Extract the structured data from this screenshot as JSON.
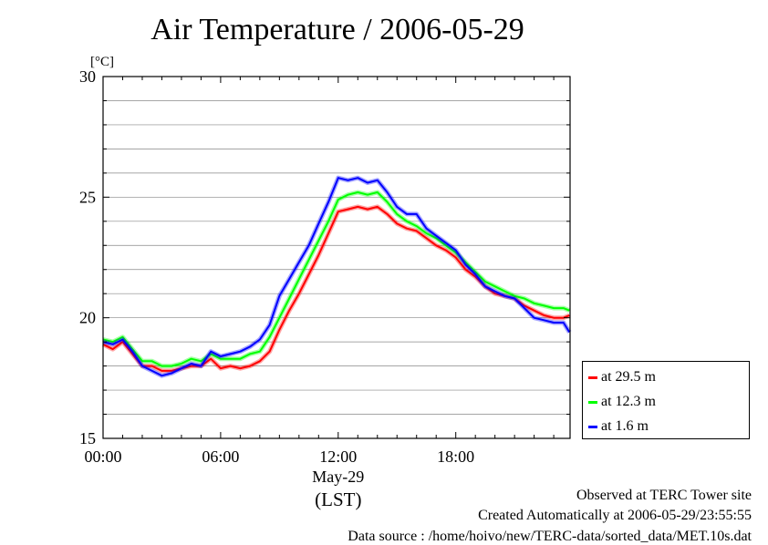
{
  "chart_data": {
    "type": "line",
    "title": "Air Temperature / 2006-05-29",
    "ylabel": "[°C]",
    "xlabel": "(LST)",
    "x_date_label": "May-29",
    "xlim": [
      "00:00",
      "23:50"
    ],
    "ylim": [
      15,
      30
    ],
    "y_ticks": [
      15,
      20,
      25,
      30
    ],
    "x_ticks": [
      "00:00",
      "06:00",
      "12:00",
      "18:00"
    ],
    "grid": true,
    "legend_position": "bottom-right outside",
    "x_hours": [
      0,
      0.5,
      1,
      1.5,
      2,
      2.5,
      3,
      3.5,
      4,
      4.5,
      5,
      5.5,
      6,
      6.5,
      7,
      7.5,
      8,
      8.5,
      9,
      9.5,
      10,
      10.5,
      11,
      11.5,
      12,
      12.5,
      13,
      13.5,
      14,
      14.5,
      15,
      15.5,
      16,
      16.5,
      17,
      17.5,
      18,
      18.5,
      19,
      19.5,
      20,
      20.5,
      21,
      21.5,
      22,
      22.5,
      23,
      23.5,
      23.8
    ],
    "series": [
      {
        "name": "at 29.5 m",
        "color": "#ff0000",
        "values": [
          18.9,
          18.7,
          19.0,
          18.5,
          18.0,
          18.0,
          17.8,
          17.8,
          17.9,
          18.0,
          18.0,
          18.3,
          17.9,
          18.0,
          17.9,
          18.0,
          18.2,
          18.6,
          19.5,
          20.3,
          21.0,
          21.8,
          22.6,
          23.5,
          24.4,
          24.5,
          24.6,
          24.5,
          24.6,
          24.3,
          23.9,
          23.7,
          23.6,
          23.3,
          23.0,
          22.8,
          22.5,
          22.0,
          21.7,
          21.3,
          21.0,
          20.9,
          20.8,
          20.5,
          20.3,
          20.1,
          20.0,
          20.0,
          20.1
        ]
      },
      {
        "name": "at 12.3 m",
        "color": "#00ff00",
        "values": [
          19.1,
          19.0,
          19.2,
          18.7,
          18.2,
          18.2,
          18.0,
          18.0,
          18.1,
          18.3,
          18.2,
          18.5,
          18.3,
          18.3,
          18.3,
          18.5,
          18.6,
          19.2,
          20.0,
          20.8,
          21.6,
          22.4,
          23.2,
          24.0,
          24.9,
          25.1,
          25.2,
          25.1,
          25.2,
          24.8,
          24.3,
          24.0,
          23.8,
          23.5,
          23.3,
          23.0,
          22.7,
          22.3,
          21.9,
          21.5,
          21.3,
          21.1,
          20.9,
          20.8,
          20.6,
          20.5,
          20.4,
          20.4,
          20.3
        ]
      },
      {
        "name": "at 1.6 m",
        "color": "#0000ff",
        "values": [
          19.0,
          18.9,
          19.1,
          18.6,
          18.0,
          17.8,
          17.6,
          17.7,
          17.9,
          18.1,
          18.0,
          18.6,
          18.4,
          18.5,
          18.6,
          18.8,
          19.1,
          19.7,
          20.9,
          21.6,
          22.3,
          23.0,
          23.9,
          24.8,
          25.8,
          25.7,
          25.8,
          25.6,
          25.7,
          25.2,
          24.6,
          24.3,
          24.3,
          23.7,
          23.4,
          23.1,
          22.8,
          22.2,
          21.8,
          21.3,
          21.1,
          20.9,
          20.8,
          20.4,
          20.0,
          19.9,
          19.8,
          19.8,
          19.4
        ]
      }
    ],
    "annotations": [
      "Observed at TERC Tower site",
      "Created Automatically at 2006-05-29/23:55:55",
      "Data source : /home/hoivo/new/TERC-data/sorted_data/MET.10s.dat"
    ]
  }
}
